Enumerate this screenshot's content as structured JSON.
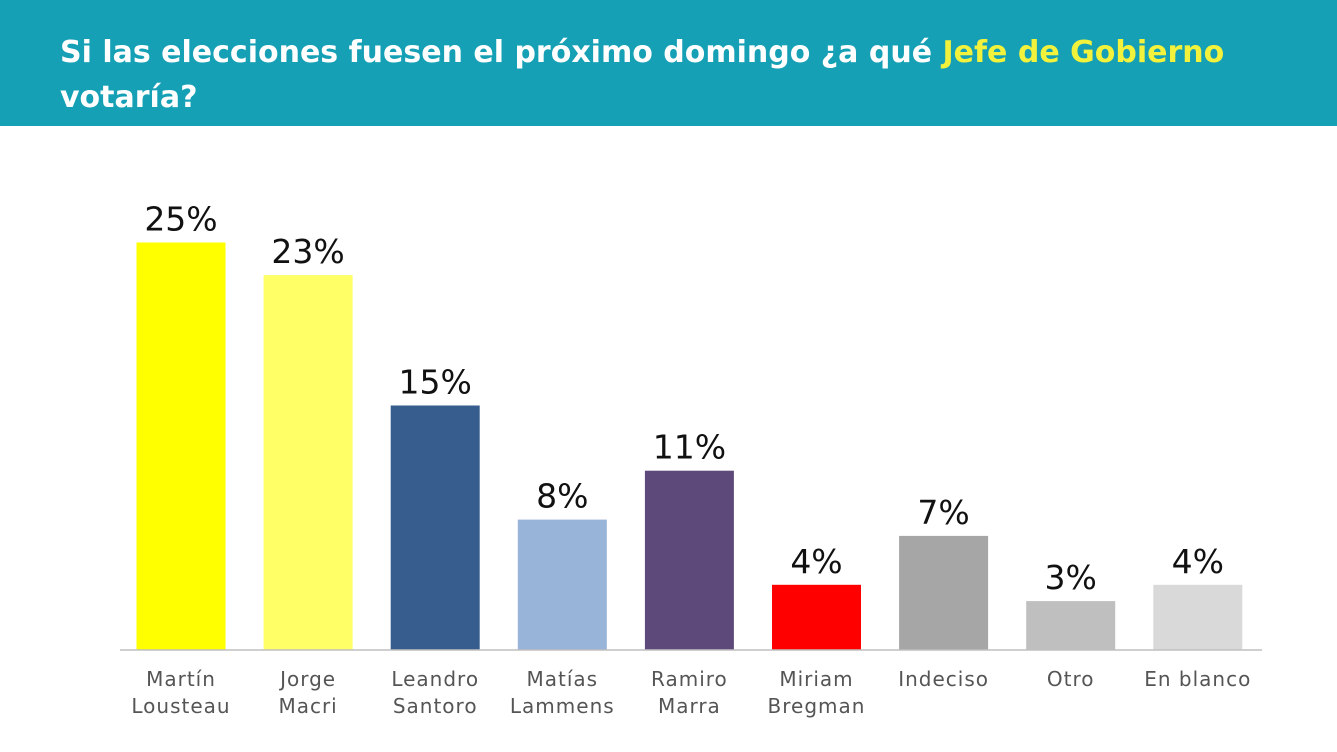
{
  "header": {
    "title_part1": "Si las elecciones fuesen el próximo domingo ¿a qué ",
    "title_highlight": "Jefe de Gobierno",
    "title_part2": " votaría?",
    "background_color": "#16a0b6",
    "highlight_color": "#f2f23c"
  },
  "chart_data": {
    "type": "bar",
    "title": "Si las elecciones fuesen el próximo domingo ¿a qué Jefe de Gobierno votaría?",
    "xlabel": "",
    "ylabel": "",
    "ylim": [
      0,
      25
    ],
    "grid": false,
    "legend": "none",
    "categories": [
      [
        "Martín",
        "Lousteau"
      ],
      [
        "Jorge",
        "Macri"
      ],
      [
        "Leandro",
        "Santoro"
      ],
      [
        "Matías",
        "Lammens"
      ],
      [
        "Ramiro",
        "Marra"
      ],
      [
        "Miriam",
        "Bregman"
      ],
      [
        "Indeciso"
      ],
      [
        "Otro"
      ],
      [
        "En blanco"
      ]
    ],
    "values": [
      25,
      23,
      15,
      8,
      11,
      4,
      7,
      3,
      4
    ],
    "value_labels": [
      "25%",
      "23%",
      "15%",
      "8%",
      "11%",
      "4%",
      "7%",
      "3%",
      "4%"
    ],
    "colors": [
      "#ffff00",
      "#ffff66",
      "#365d8d",
      "#99b4d9",
      "#5e4a7a",
      "#ff0000",
      "#a6a6a6",
      "#bfbfbf",
      "#d9d9d9"
    ]
  }
}
